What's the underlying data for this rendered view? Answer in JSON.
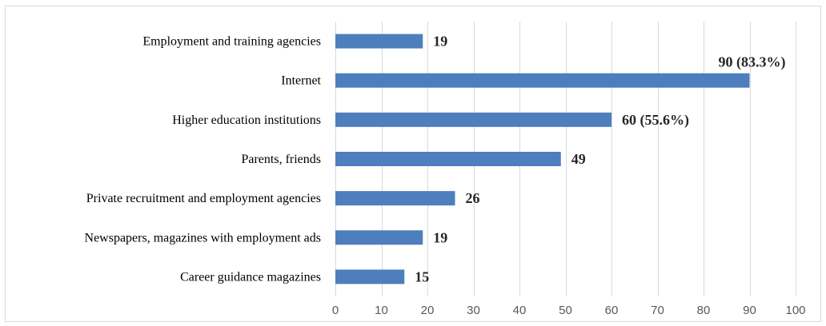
{
  "chart_data": {
    "type": "bar",
    "orientation": "horizontal",
    "categories": [
      "Employment and training agencies",
      "Internet",
      "Higher education institutions",
      "Parents, friends",
      "Private recruitment and employment agencies",
      "Newspapers, magazines with employment ads",
      "Career guidance magazines"
    ],
    "values": [
      19,
      90,
      60,
      49,
      26,
      19,
      15
    ],
    "data_labels": [
      "19",
      "90 (83.3%)",
      "60 (55.6%)",
      "49",
      "26",
      "19",
      "15"
    ],
    "xlim": [
      0,
      100
    ],
    "xticks": [
      "0",
      "10",
      "20",
      "30",
      "40",
      "50",
      "60",
      "70",
      "80",
      "90",
      "100"
    ],
    "title": "",
    "xlabel": "",
    "ylabel": "",
    "grid": "vertical",
    "legend": "none",
    "bar_color": "#4e7ebd",
    "grid_color": "#d9d9d9"
  }
}
